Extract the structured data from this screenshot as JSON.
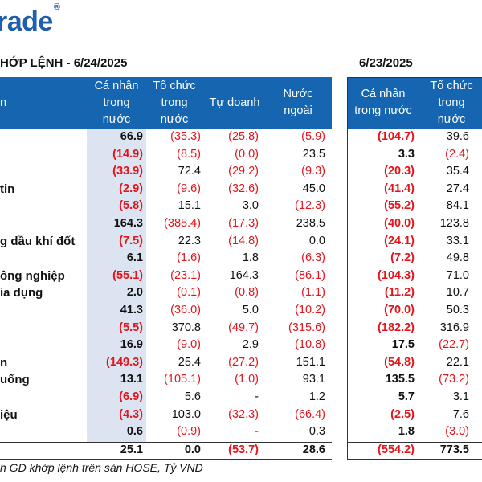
{
  "brand": {
    "text": "rade",
    "mark": "®"
  },
  "left_title": "HỚP LỆNH - 6/24/2025",
  "right_title": "6/23/2025",
  "headers_left": [
    "n",
    "Cá nhân\ntrong\nnước",
    "Tổ chức\ntrong\nnước",
    "Tự doanh",
    "Nước\nngoài"
  ],
  "headers_right": [
    "Cá nhân\ntrong nước",
    "Tổ chức\ntrong\nnước"
  ],
  "rows": [
    {
      "name": "",
      "left": [
        "66.9",
        "(35.3)",
        "(25.8)",
        "(5.9)"
      ],
      "right": [
        "(104.7)",
        "39.6"
      ]
    },
    {
      "name": "",
      "left": [
        "(14.9)",
        "(8.5)",
        "(0.0)",
        "23.5"
      ],
      "right": [
        "3.3",
        "(2.4)"
      ]
    },
    {
      "name": "",
      "left": [
        "(33.9)",
        "72.4",
        "(29.2)",
        "(9.3)"
      ],
      "right": [
        "(20.3)",
        "35.4"
      ]
    },
    {
      "name": "tin",
      "left": [
        "(2.9)",
        "(9.6)",
        "(32.6)",
        "45.0"
      ],
      "right": [
        "(41.4)",
        "27.4"
      ]
    },
    {
      "name": "",
      "left": [
        "(5.8)",
        "15.1",
        "3.0",
        "(12.3)"
      ],
      "right": [
        "(55.2)",
        "84.1"
      ]
    },
    {
      "name": "",
      "left": [
        "164.3",
        "(385.4)",
        "(17.3)",
        "238.5"
      ],
      "right": [
        "(40.0)",
        "123.8"
      ]
    },
    {
      "name": "g dầu khí đốt",
      "left": [
        "(7.5)",
        "22.3",
        "(14.8)",
        "0.0"
      ],
      "right": [
        "(24.1)",
        "33.1"
      ]
    },
    {
      "name": "",
      "left": [
        "6.1",
        "(1.6)",
        "1.8",
        "(6.3)"
      ],
      "right": [
        "(7.2)",
        "49.8"
      ]
    },
    {
      "name": "ông nghiệp",
      "left": [
        "(55.1)",
        "(23.1)",
        "164.3",
        "(86.1)"
      ],
      "right": [
        "(104.3)",
        "71.0"
      ]
    },
    {
      "name": "ia dụng",
      "left": [
        "2.0",
        "(0.1)",
        "(0.8)",
        "(1.1)"
      ],
      "right": [
        "(11.2)",
        "10.7"
      ]
    },
    {
      "name": "",
      "left": [
        "41.3",
        "(36.0)",
        "5.0",
        "(10.2)"
      ],
      "right": [
        "(70.0)",
        "50.3"
      ]
    },
    {
      "name": "",
      "left": [
        "(5.5)",
        "370.8",
        "(49.7)",
        "(315.6)"
      ],
      "right": [
        "(182.2)",
        "316.9"
      ]
    },
    {
      "name": "",
      "left": [
        "16.9",
        "(9.0)",
        "2.9",
        "(10.8)"
      ],
      "right": [
        "17.5",
        "(22.7)"
      ]
    },
    {
      "name": "n",
      "left": [
        "(149.3)",
        "25.4",
        "(27.2)",
        "151.1"
      ],
      "right": [
        "(54.8)",
        "22.1"
      ]
    },
    {
      "name": "uống",
      "left": [
        "13.1",
        "(105.1)",
        "(1.0)",
        "93.1"
      ],
      "right": [
        "135.5",
        "(73.2)"
      ]
    },
    {
      "name": "",
      "left": [
        "(6.9)",
        "5.6",
        "-",
        "1.2"
      ],
      "right": [
        "5.7",
        "3.1"
      ]
    },
    {
      "name": "iệu",
      "left": [
        "(4.3)",
        "103.0",
        "(32.3)",
        "(66.4)"
      ],
      "right": [
        "(2.5)",
        "7.6"
      ]
    },
    {
      "name": "",
      "left": [
        "0.6",
        "(0.9)",
        "-",
        "0.3"
      ],
      "right": [
        "1.8",
        "(3.0)"
      ]
    }
  ],
  "total": {
    "left": [
      "25.1",
      "0.0",
      "(53.7)",
      "28.6"
    ],
    "right": [
      "(554.2)",
      "773.5"
    ]
  },
  "footnote": "h GD khớp lệnh trên sàn HOSE, Tỷ VND",
  "colors": {
    "header_bg": "#1565b0",
    "negative": "#e3141b",
    "shade": "#dce4f2"
  }
}
